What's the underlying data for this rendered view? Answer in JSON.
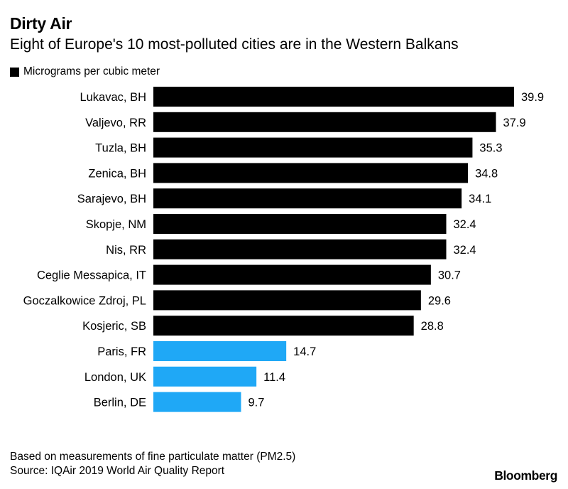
{
  "header": {
    "title": "Dirty Air",
    "subtitle": "Eight of Europe's 10 most-polluted cities are in the Western Balkans"
  },
  "legend": {
    "label": "Micrograms per cubic meter",
    "color": "#000000"
  },
  "colors": {
    "balkan_and_top10": "#000000",
    "major_cities": "#1fa8f6"
  },
  "chart_data": {
    "type": "bar",
    "orientation": "horizontal",
    "title": "Dirty Air",
    "subtitle": "Eight of Europe's 10 most-polluted cities are in the Western Balkans",
    "xlabel": "Micrograms per cubic meter",
    "ylabel": "",
    "xlim": [
      0,
      39.9
    ],
    "grid": false,
    "categories": [
      "Lukavac, BH",
      "Valjevo, RR",
      "Tuzla, BH",
      "Zenica, BH",
      "Sarajevo, BH",
      "Skopje, NM",
      "Nis, RR",
      "Ceglie Messapica, IT",
      "Goczalkowice Zdroj, PL",
      "Kosjeric, SB",
      "Paris, FR",
      "London, UK",
      "Berlin, DE"
    ],
    "values": [
      39.9,
      37.9,
      35.3,
      34.8,
      34.1,
      32.4,
      32.4,
      30.7,
      29.6,
      28.8,
      14.7,
      11.4,
      9.7
    ],
    "value_labels": [
      "39.9",
      "37.9",
      "35.3",
      "34.8",
      "34.1",
      "32.4",
      "32.4",
      "30.7",
      "29.6",
      "28.8",
      "14.7",
      "11.4",
      "9.7"
    ],
    "bar_colors": [
      "#000000",
      "#000000",
      "#000000",
      "#000000",
      "#000000",
      "#000000",
      "#000000",
      "#000000",
      "#000000",
      "#000000",
      "#1fa8f6",
      "#1fa8f6",
      "#1fa8f6"
    ]
  },
  "footer": {
    "note": "Based on measurements of fine particulate matter (PM2.5)",
    "source": "Source: IQAir 2019 World Air Quality Report",
    "brand": "Bloomberg"
  }
}
